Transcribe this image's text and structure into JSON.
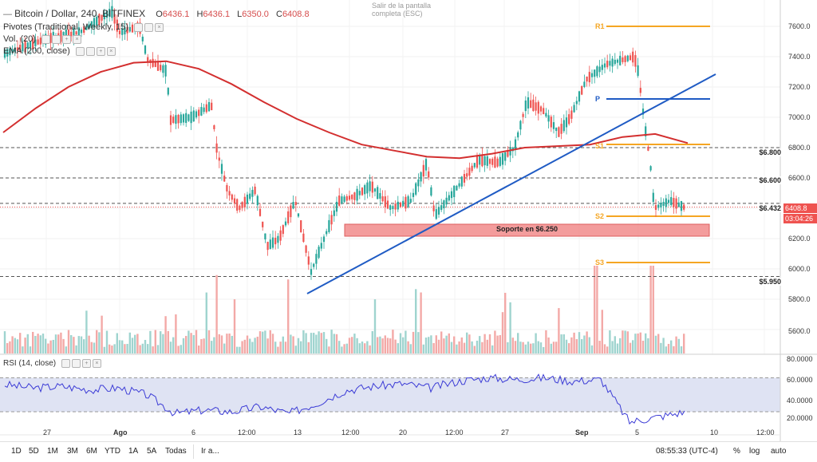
{
  "header": {
    "symbol": "Bitcoin / Dollar, 240, BITFINEX",
    "o_label": "O",
    "o": "6436.1",
    "h_label": "H",
    "h": "6436.1",
    "l_label": "L",
    "l": "6350.0",
    "c_label": "C",
    "c": "6408.8"
  },
  "indicators": {
    "pivots": "Pivotes (Traditional, Weekly, 15)",
    "vol": "Vol. (20)",
    "ema": "EMA (200, close)",
    "rsi": "RSI (14, close)"
  },
  "tooltip": "Salir de la pantalla completa (ESC)",
  "price_axis": {
    "ticks": [
      "7600.0",
      "7400.0",
      "7200.0",
      "7000.0",
      "6800.0",
      "6600.0",
      "6400.0",
      "6200.0",
      "6000.0",
      "5800.0",
      "5600.0"
    ],
    "current_price": "6408.8",
    "countdown": "03:04:26"
  },
  "rsi_axis": {
    "ticks": [
      "80.0000",
      "60.0000",
      "40.0000",
      "20.0000"
    ]
  },
  "levels": {
    "l6800": "$6.800",
    "l6600": "$6.600",
    "l6432": "$6.432",
    "l5950": "$5.950",
    "support": "Soporte en $6.250"
  },
  "pivots": {
    "r1": "R1",
    "p": "P",
    "s1": "S1",
    "s2": "S2",
    "s3": "S3"
  },
  "time_axis": {
    "ticks": [
      "27",
      "Ago",
      "6",
      "12:00",
      "13",
      "12:00",
      "20",
      "12:00",
      "27",
      "Sep",
      "5",
      "10",
      "12:00"
    ]
  },
  "toolbar": {
    "timeframes": [
      "1D",
      "5D",
      "1M",
      "3M",
      "6M",
      "YTD",
      "1A",
      "5A",
      "Todas"
    ],
    "goto": "Ir a...",
    "clock": "08:55:33 (UTC-4)",
    "pct": "%",
    "log": "log",
    "auto": "auto"
  },
  "colors": {
    "up": "#26a69a",
    "down": "#ef5350",
    "ema": "#d32f2f",
    "trendline": "#1f5bc4",
    "pivot": "#f5a623",
    "pivot_p": "#1f5bc4",
    "support_fill": "#f28b8b"
  },
  "chart_data": {
    "type": "candlestick",
    "ema_200": [
      6900,
      7060,
      7200,
      7300,
      7360,
      7370,
      7320,
      7220,
      7100,
      6990,
      6900,
      6820,
      6780,
      6740,
      6730,
      6760,
      6800,
      6810,
      6820,
      6870,
      6890,
      6830
    ],
    "rsi_14": [
      62,
      58,
      60,
      56,
      58,
      50,
      28,
      32,
      30,
      36,
      28,
      40,
      55,
      60,
      63,
      58,
      66,
      70,
      68,
      70,
      66,
      68,
      18,
      24,
      30
    ],
    "rsi_band": [
      30,
      70
    ]
  }
}
